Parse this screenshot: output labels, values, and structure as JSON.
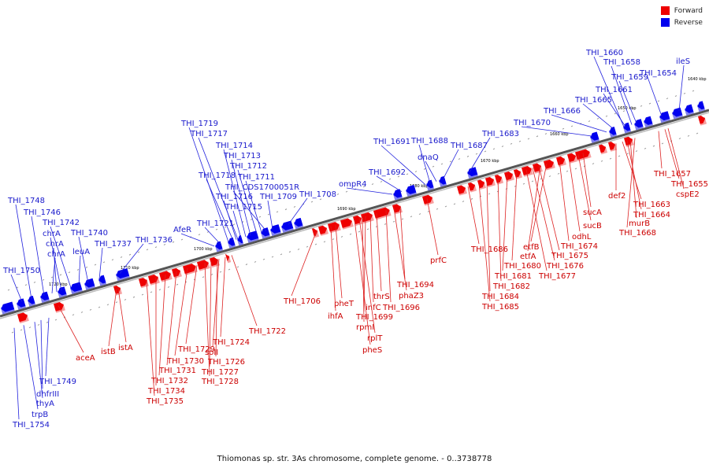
{
  "legend": {
    "forward_label": "Forward",
    "reverse_label": "Reverse",
    "forward_color": "#ee0000",
    "reverse_color": "#0000ee"
  },
  "caption": "Thiomonas sp. str. 3As chromosome, complete genome. - 0..3738778",
  "kbp_ticks": [
    "1640 kbp",
    "1650 kbp",
    "1660 kbp",
    "1670 kbp",
    "1680 kbp",
    "1690 kbp",
    "1700 kbp",
    "1710 kbp",
    "1720 kbp",
    "1730 kbp"
  ],
  "reverse_labels": [
    "THI_1660",
    "THI_1658",
    "ileS",
    "THI_1659",
    "THI_1654",
    "THI_1661",
    "THI_1665",
    "THI_1666",
    "THI_1670",
    "THI_1683",
    "THI_1687",
    "THI_1691",
    "THI_1688",
    "dnaQ",
    "THI_1692",
    "ompR4",
    "THI_1708",
    "THI_1709",
    "THI_CDS1700051R",
    "THI_1711",
    "THI_1712",
    "THI_1713",
    "THI_1714",
    "THI_1717",
    "THI_1719",
    "THI_1718",
    "THI_1716",
    "THI_1715",
    "THI_1721",
    "AfeR",
    "THI_1736",
    "THI_1737",
    "THI_1740",
    "leuA",
    "THI_1742",
    "chrA",
    "chrA",
    "chrA",
    "THI_1746",
    "THI_1748",
    "THI_1750",
    "THI_1749",
    "dhfrIII",
    "thyA",
    "trpB",
    "THI_1754"
  ],
  "forward_labels": [
    "THI_1657",
    "THI_1655",
    "cspE2",
    "def2",
    "THI_1663",
    "THI_1664",
    "murB",
    "THI_1668",
    "sucA",
    "sucB",
    "odhL",
    "THI_1674",
    "etfB",
    "etfA",
    "THI_1675",
    "THI_1676",
    "THI_1677",
    "THI_1680",
    "THI_1681",
    "THI_1682",
    "THI_1684",
    "THI_1685",
    "THI_1686",
    "prfC",
    "THI_1694",
    "phaZ3",
    "THI_1696",
    "thrS",
    "infC",
    "THI_1699",
    "rpmI",
    "rplT",
    "pheS",
    "pheT",
    "ihfA",
    "THI_1706",
    "THI_1722",
    "THI_1724",
    "soII",
    "THI_1726",
    "THI_1727",
    "THI_1728",
    "THI_1729",
    "THI_1730",
    "THI_1731",
    "THI_1732",
    "THI_1734",
    "THI_1735",
    "istA",
    "istB",
    "aceA"
  ]
}
